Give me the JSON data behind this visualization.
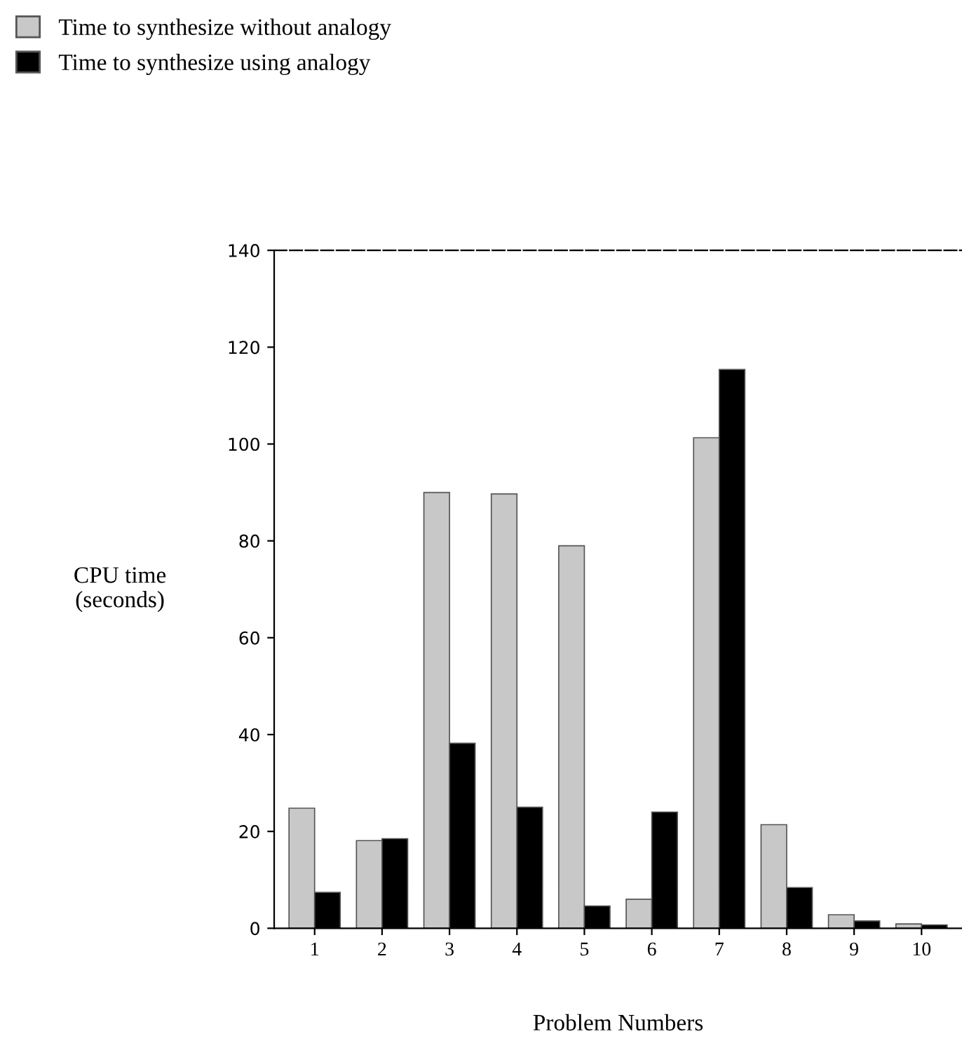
{
  "chart_data": {
    "type": "bar",
    "xlabel": "Problem Numbers",
    "ylabel": "CPU time\n(seconds)",
    "categories": [
      "1",
      "2",
      "3",
      "4",
      "5",
      "6",
      "7",
      "8",
      "9",
      "10"
    ],
    "series": [
      {
        "name": "Time to synthesize without analogy",
        "color": "#c8c8c8",
        "values": [
          24.8,
          18.1,
          90,
          89.7,
          79,
          6,
          101.3,
          21.4,
          2.8,
          0.9
        ]
      },
      {
        "name": "Time to synthesize using analogy",
        "color": "#000000",
        "values": [
          7.4,
          18.5,
          38.2,
          25,
          4.6,
          24,
          115.4,
          8.4,
          1.5,
          0.7
        ]
      }
    ],
    "ylim": [
      0,
      140
    ],
    "yticks": [
      0,
      20,
      40,
      60,
      80,
      100,
      120,
      140
    ],
    "grid": false,
    "legend": "top left"
  }
}
